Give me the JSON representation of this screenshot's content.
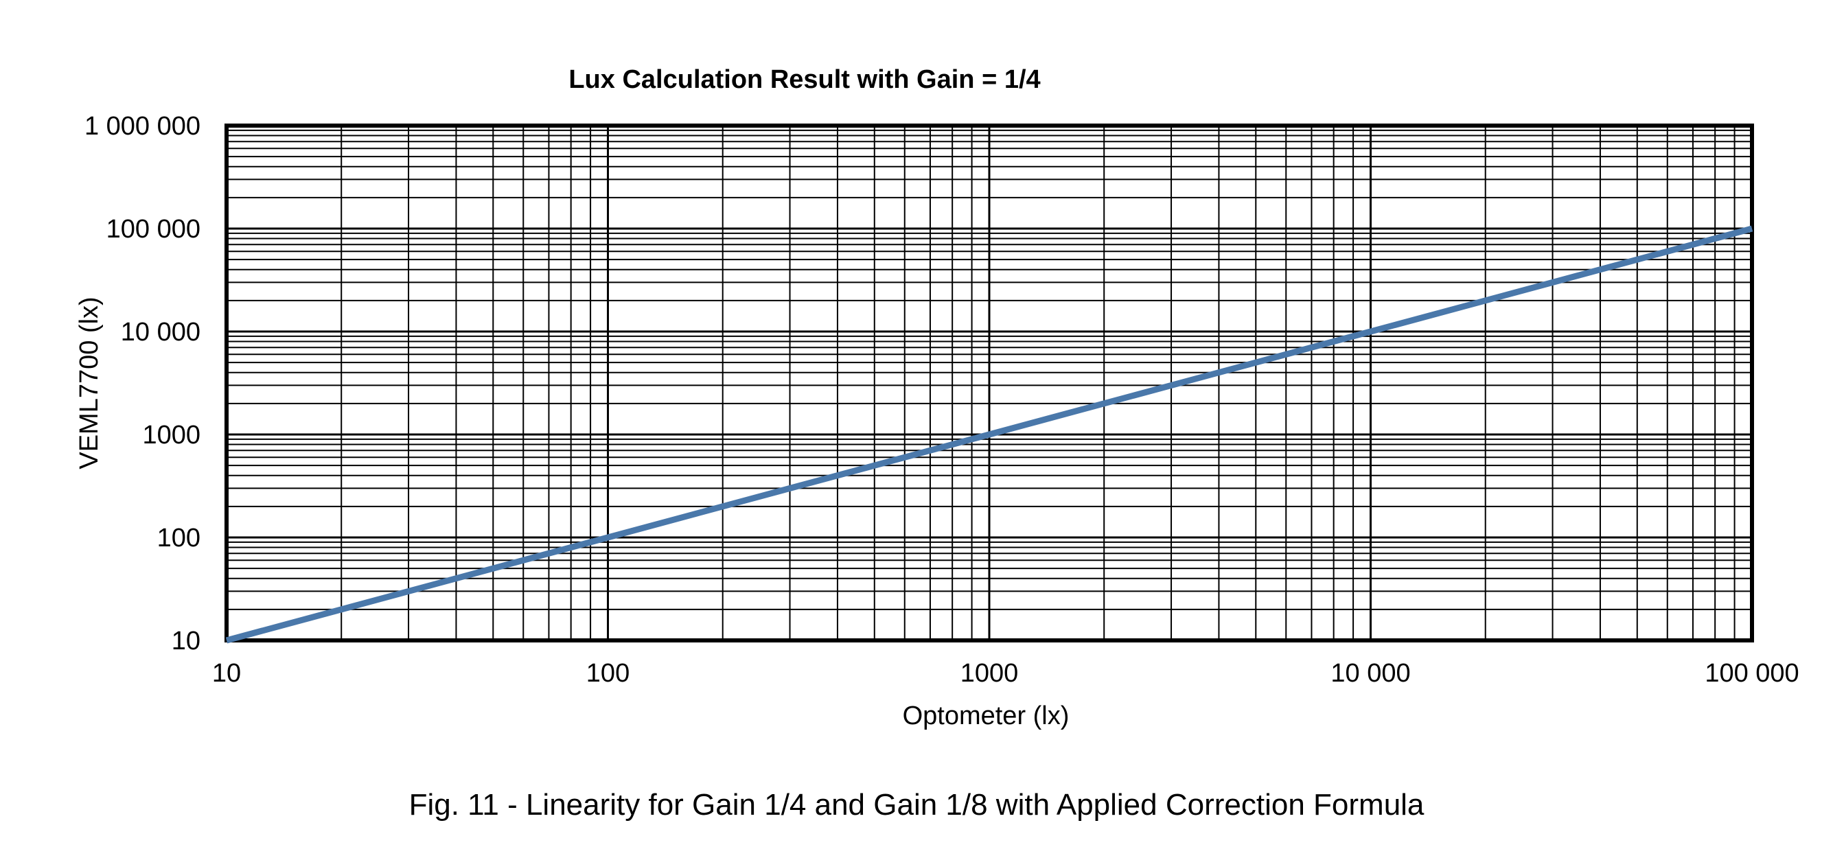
{
  "chart_data": {
    "type": "line",
    "title": "Lux Calculation Result with Gain = 1/4",
    "xlabel": "Optometer (lx)",
    "ylabel": "VEML7700 (lx)",
    "x_scale": "log",
    "y_scale": "log",
    "xlim": [
      10,
      100000
    ],
    "ylim": [
      10,
      1000000
    ],
    "x_ticks": [
      10,
      100,
      1000,
      10000,
      100000
    ],
    "x_tick_labels": [
      "10",
      "100",
      "1000",
      "10 000",
      "100 000"
    ],
    "y_ticks": [
      10,
      100,
      1000,
      10000,
      100000,
      1000000
    ],
    "y_tick_labels": [
      "10",
      "100",
      "1000",
      "10 000",
      "100 000",
      "1 000 000"
    ],
    "grid": true,
    "series": [
      {
        "color": "#4a78aa",
        "x": [
          10,
          100,
          1000,
          10000,
          100000
        ],
        "y": [
          10,
          100,
          1000,
          10000,
          100000
        ]
      }
    ]
  },
  "caption": "Fig. 11 - Linearity for Gain 1/4 and Gain 1/8 with Applied Correction Formula"
}
